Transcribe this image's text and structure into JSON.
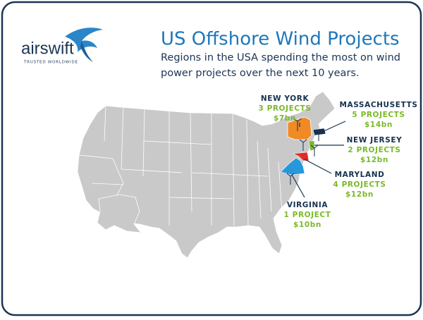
{
  "logo": {
    "name": "airswift",
    "tagline": "TRUSTED WORLDWIDE"
  },
  "header": {
    "title": "US Offshore Wind Projects",
    "subtitle_lines": [
      "Regions in the USA spending the most on wind",
      "power projects over the next 10 years."
    ]
  },
  "regions": [
    {
      "name": "NEW YORK",
      "projects": "3 PROJECTS",
      "spend": "$7bn"
    },
    {
      "name": "MASSACHUSETTS",
      "projects": "5 PROJECTS",
      "spend": "$14bn"
    },
    {
      "name": "NEW JERSEY",
      "projects": "2 PROJECTS",
      "spend": "$12bn"
    },
    {
      "name": "MARYLAND",
      "projects": "4 PROJECTS",
      "spend": "$12bn"
    },
    {
      "name": "VIRGINIA",
      "projects": "1 PROJECT",
      "spend": "$10bn"
    }
  ]
}
